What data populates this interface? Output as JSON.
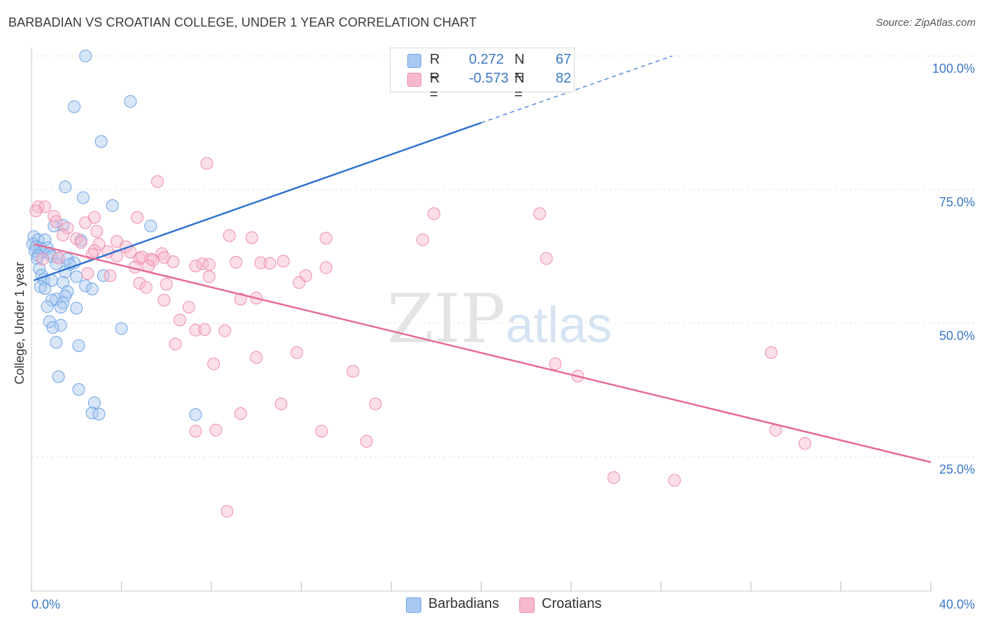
{
  "header": {
    "title": "BARBADIAN VS CROATIAN COLLEGE, UNDER 1 YEAR CORRELATION CHART",
    "source": "Source: ZipAtlas.com"
  },
  "watermark": {
    "zip": "ZIP",
    "atlas": "atlas"
  },
  "legend_top": [
    {
      "r_label": "R =",
      "r_value": "0.272",
      "n_label": "N =",
      "n_value": "67",
      "color": "#a9c8f0"
    },
    {
      "r_label": "R =",
      "r_value": "-0.573",
      "n_label": "N =",
      "n_value": "82",
      "color": "#f6b8cb"
    }
  ],
  "legend_bottom": [
    {
      "label": "Barbadians",
      "color": "#a9c8f0"
    },
    {
      "label": "Croatians",
      "color": "#f6b8cb"
    }
  ],
  "chart_data": {
    "type": "scatter",
    "title": "BARBADIAN VS CROATIAN COLLEGE, UNDER 1 YEAR CORRELATION CHART",
    "xlabel": "",
    "ylabel": "College, Under 1 year",
    "xlim": [
      0,
      40
    ],
    "ylim": [
      0,
      100
    ],
    "x_tick_labels": [
      "0.0%",
      "40.0%"
    ],
    "y_ticks": [
      25,
      50,
      75,
      100
    ],
    "y_tick_labels": [
      "25.0%",
      "50.0%",
      "75.0%",
      "100.0%"
    ],
    "grid": true,
    "legend_placement": "top-center",
    "series": [
      {
        "name": "Barbadians",
        "color": "#6fa3e6",
        "trend": {
          "x0": 0.1,
          "y0": 58.0,
          "x1": 20.0,
          "y1": 87.5,
          "dashed_to_x": 28.5,
          "dashed_to_y": 100.0
        },
        "points": [
          [
            2.4,
            100
          ],
          [
            18.2,
            100
          ],
          [
            1.9,
            90.5
          ],
          [
            4.4,
            91.5
          ],
          [
            3.1,
            84
          ],
          [
            1.5,
            75.5
          ],
          [
            2.3,
            73.5
          ],
          [
            3.6,
            72.0
          ],
          [
            1.4,
            68.3
          ],
          [
            1.0,
            68.2
          ],
          [
            5.3,
            68.2
          ],
          [
            0.1,
            66.2
          ],
          [
            0.3,
            65.6
          ],
          [
            0.6,
            65.6
          ],
          [
            2.2,
            65.5
          ],
          [
            0.05,
            64.8
          ],
          [
            0.2,
            64.3
          ],
          [
            0.4,
            64.0
          ],
          [
            0.7,
            64.1
          ],
          [
            0.15,
            63.5
          ],
          [
            0.5,
            63.3
          ],
          [
            0.8,
            63.1
          ],
          [
            0.3,
            62.6
          ],
          [
            0.9,
            62.5
          ],
          [
            1.2,
            62.2
          ],
          [
            1.6,
            62.0
          ],
          [
            0.25,
            62.1
          ],
          [
            1.9,
            61.3
          ],
          [
            1.1,
            61.1
          ],
          [
            1.7,
            61.0
          ],
          [
            0.35,
            60.2
          ],
          [
            1.5,
            59.6
          ],
          [
            0.45,
            59.0
          ],
          [
            2.0,
            58.7
          ],
          [
            3.2,
            58.9
          ],
          [
            0.55,
            58.2
          ],
          [
            0.9,
            58.0
          ],
          [
            1.4,
            57.6
          ],
          [
            2.4,
            57.0
          ],
          [
            0.4,
            56.8
          ],
          [
            0.6,
            56.5
          ],
          [
            2.7,
            56.4
          ],
          [
            1.6,
            55.9
          ],
          [
            1.1,
            54.5
          ],
          [
            1.5,
            55.1
          ],
          [
            0.9,
            54.3
          ],
          [
            1.4,
            53.8
          ],
          [
            0.7,
            53.1
          ],
          [
            1.3,
            53.0
          ],
          [
            2.0,
            52.8
          ],
          [
            0.8,
            50.3
          ],
          [
            1.3,
            49.6
          ],
          [
            0.95,
            49.2
          ],
          [
            4.0,
            49.0
          ],
          [
            1.1,
            46.4
          ],
          [
            2.1,
            45.8
          ],
          [
            1.2,
            40.0
          ],
          [
            2.1,
            37.6
          ],
          [
            2.8,
            35.1
          ],
          [
            2.7,
            33.2
          ],
          [
            3.0,
            33.0
          ],
          [
            7.3,
            32.9
          ]
        ]
      },
      {
        "name": "Croatians",
        "color": "#f08cab",
        "trend": {
          "x0": 0.1,
          "y0": 64.8,
          "x1": 40.0,
          "y1": 24.0
        },
        "points": [
          [
            0.3,
            71.8
          ],
          [
            0.6,
            71.8
          ],
          [
            0.2,
            71.0
          ],
          [
            1.0,
            70.0
          ],
          [
            1.1,
            69.0
          ],
          [
            2.4,
            68.8
          ],
          [
            1.6,
            67.8
          ],
          [
            2.8,
            69.8
          ],
          [
            2.9,
            67.2
          ],
          [
            5.6,
            76.5
          ],
          [
            7.8,
            79.9
          ],
          [
            4.7,
            69.8
          ],
          [
            1.4,
            66.5
          ],
          [
            2.0,
            65.8
          ],
          [
            2.2,
            65.1
          ],
          [
            3.0,
            64.8
          ],
          [
            3.8,
            65.3
          ],
          [
            4.2,
            64.3
          ],
          [
            2.8,
            63.6
          ],
          [
            3.4,
            63.4
          ],
          [
            4.4,
            63.3
          ],
          [
            2.7,
            62.9
          ],
          [
            5.8,
            63.0
          ],
          [
            4.8,
            62.1
          ],
          [
            5.3,
            62.0
          ],
          [
            0.5,
            62.0
          ],
          [
            1.2,
            62.2
          ],
          [
            5.9,
            62.3
          ],
          [
            3.8,
            62.6
          ],
          [
            4.9,
            62.4
          ],
          [
            5.4,
            61.8
          ],
          [
            6.3,
            61.5
          ],
          [
            7.6,
            61.1
          ],
          [
            7.9,
            61.0
          ],
          [
            9.1,
            61.4
          ],
          [
            10.2,
            61.3
          ],
          [
            10.6,
            61.2
          ],
          [
            11.2,
            61.6
          ],
          [
            13.1,
            60.4
          ],
          [
            8.8,
            66.4
          ],
          [
            9.8,
            66.0
          ],
          [
            7.3,
            60.7
          ],
          [
            5.2,
            60.7
          ],
          [
            4.6,
            60.5
          ],
          [
            2.5,
            59.3
          ],
          [
            3.5,
            58.9
          ],
          [
            7.9,
            58.7
          ],
          [
            12.2,
            58.9
          ],
          [
            11.9,
            57.6
          ],
          [
            6.0,
            57.3
          ],
          [
            4.8,
            57.5
          ],
          [
            5.1,
            56.7
          ],
          [
            9.3,
            54.5
          ],
          [
            10.0,
            54.7
          ],
          [
            5.9,
            54.3
          ],
          [
            7.0,
            53.0
          ],
          [
            6.6,
            50.6
          ],
          [
            7.3,
            48.7
          ],
          [
            7.7,
            48.8
          ],
          [
            8.6,
            48.6
          ],
          [
            6.4,
            46.1
          ],
          [
            11.8,
            44.5
          ],
          [
            10.0,
            43.6
          ],
          [
            8.1,
            42.4
          ],
          [
            14.3,
            41.0
          ],
          [
            17.4,
            65.6
          ],
          [
            13.1,
            65.9
          ],
          [
            17.9,
            70.5
          ],
          [
            22.6,
            70.5
          ],
          [
            22.9,
            62.1
          ],
          [
            23.3,
            42.4
          ],
          [
            24.3,
            40.1
          ],
          [
            11.1,
            34.9
          ],
          [
            15.3,
            34.9
          ],
          [
            9.3,
            33.1
          ],
          [
            12.9,
            29.8
          ],
          [
            7.3,
            29.8
          ],
          [
            8.2,
            30.0
          ],
          [
            14.9,
            27.9
          ],
          [
            32.9,
            44.5
          ],
          [
            33.1,
            30.0
          ],
          [
            34.4,
            27.5
          ],
          [
            25.9,
            21.1
          ],
          [
            28.6,
            20.6
          ],
          [
            8.7,
            14.8
          ]
        ]
      }
    ]
  }
}
